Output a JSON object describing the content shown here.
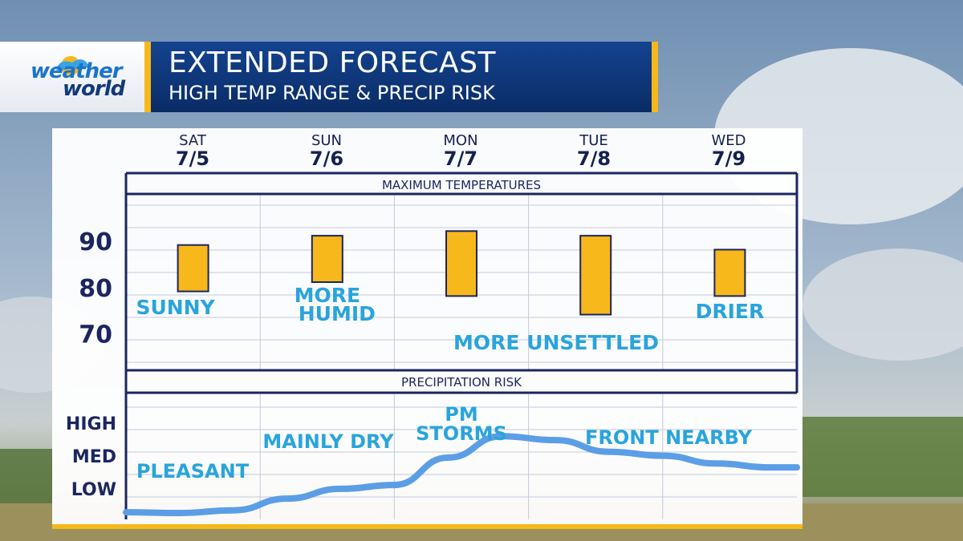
{
  "header": {
    "brand_line1": "weather",
    "brand_line2": "world",
    "title": "EXTENDED FORECAST",
    "subtitle": "HIGH TEMP RANGE & PRECIP RISK"
  },
  "days": [
    {
      "name": "SAT",
      "date": "7/5"
    },
    {
      "name": "SUN",
      "date": "7/6"
    },
    {
      "name": "MON",
      "date": "7/7"
    },
    {
      "name": "TUE",
      "date": "7/8"
    },
    {
      "name": "WED",
      "date": "7/9"
    }
  ],
  "colors": {
    "navy": "#1b2660",
    "accent": "#f7b81c",
    "label": "#29a4dc",
    "line": "#5b9ee6"
  },
  "chart_data": [
    {
      "type": "bar",
      "title": "MAXIMUM TEMPERATURES",
      "categories": [
        "SAT",
        "SUN",
        "MON",
        "TUE",
        "WED"
      ],
      "yticks": [
        "90",
        "80",
        "70"
      ],
      "ylim": [
        62,
        100
      ],
      "series": [
        {
          "name": "High Temp Range",
          "low": [
            79,
            81,
            78,
            74,
            78
          ],
          "high": [
            89,
            91,
            92,
            91,
            88
          ]
        }
      ],
      "annotations": [
        {
          "text": "SUNNY",
          "day": 0
        },
        {
          "text": "MORE",
          "day": 1
        },
        {
          "text": "HUMID",
          "day": 1
        },
        {
          "text": "MORE UNSETTLED",
          "day": 2.9
        },
        {
          "text": "DRIER",
          "day": 4
        }
      ]
    },
    {
      "type": "line",
      "title": "PRECIPITATION RISK",
      "yticks": [
        "HIGH",
        "MED",
        "LOW"
      ],
      "levels": {
        "LOW": 1,
        "MED": 2,
        "HIGH": 3
      },
      "ylim": [
        0,
        3
      ],
      "x": [
        0,
        0.4,
        0.8,
        1.2,
        1.6,
        2.0,
        2.4,
        2.8,
        3.2,
        3.6,
        4.0,
        4.4,
        4.8,
        5.0
      ],
      "values": [
        0.1,
        0.08,
        0.15,
        0.45,
        0.7,
        0.8,
        1.5,
        2.05,
        1.95,
        1.65,
        1.55,
        1.35,
        1.25,
        1.25
      ],
      "annotations": [
        {
          "text": "PLEASANT",
          "day": 0.05
        },
        {
          "text": "MAINLY DRY",
          "day": 1.1
        },
        {
          "text": "PM",
          "day": 2.1
        },
        {
          "text": "STORMS",
          "day": 2.1
        },
        {
          "text": "FRONT NEARBY",
          "day": 3.4
        }
      ]
    }
  ]
}
